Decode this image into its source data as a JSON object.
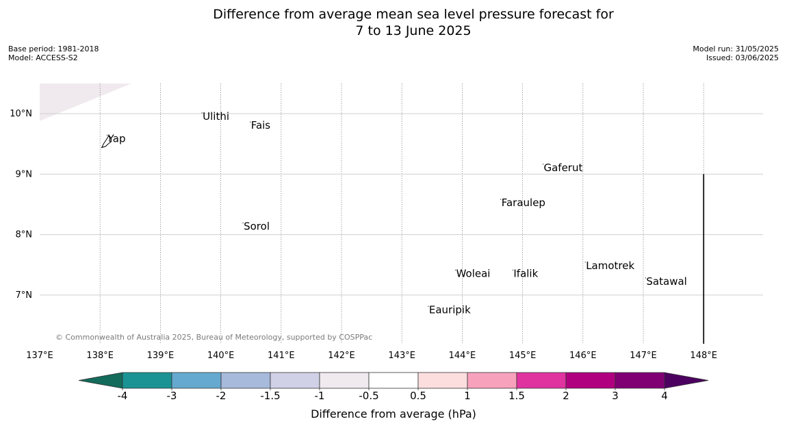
{
  "title": {
    "line1": "Difference from average mean sea level pressure forecast for",
    "line2": "7 to 13 June 2025"
  },
  "meta": {
    "base_period": "Base period: 1981-2018",
    "model": "Model: ACCESS-S2",
    "model_run": "Model run: 31/05/2025",
    "issued": "Issued: 03/06/2025"
  },
  "copyright": "© Commonwealth of Australia 2025, Bureau of Meteorology, supported by COSPPac",
  "map": {
    "lon_range": [
      137,
      149
    ],
    "lat_range": [
      6.2,
      10.5
    ],
    "lon_ticks": [
      {
        "value": 137,
        "label": "137°E"
      },
      {
        "value": 138,
        "label": "138°E"
      },
      {
        "value": 139,
        "label": "139°E"
      },
      {
        "value": 140,
        "label": "140°E"
      },
      {
        "value": 141,
        "label": "141°E"
      },
      {
        "value": 142,
        "label": "142°E"
      },
      {
        "value": 143,
        "label": "143°E"
      },
      {
        "value": 144,
        "label": "144°E"
      },
      {
        "value": 145,
        "label": "145°E"
      },
      {
        "value": 146,
        "label": "146°E"
      },
      {
        "value": 147,
        "label": "147°E"
      },
      {
        "value": 148,
        "label": "148°E"
      }
    ],
    "lat_ticks": [
      {
        "value": 10,
        "label": "10°N"
      },
      {
        "value": 9,
        "label": "9°N"
      },
      {
        "value": 8,
        "label": "8°N"
      },
      {
        "value": 7,
        "label": "7°N"
      }
    ],
    "places": [
      {
        "name": "Ulithi",
        "lon": 139.7,
        "lat": 9.9
      },
      {
        "name": "Fais",
        "lon": 140.5,
        "lat": 9.75
      },
      {
        "name": "Yap",
        "lon": 138.13,
        "lat": 9.53
      },
      {
        "name": "Gaferut",
        "lon": 145.35,
        "lat": 9.05
      },
      {
        "name": "Faraulep",
        "lon": 144.65,
        "lat": 8.47
      },
      {
        "name": "Sorol",
        "lon": 140.38,
        "lat": 8.08
      },
      {
        "name": "Woleai",
        "lon": 143.9,
        "lat": 7.3
      },
      {
        "name": "Ifalik",
        "lon": 144.85,
        "lat": 7.3
      },
      {
        "name": "Lamotrek",
        "lon": 146.05,
        "lat": 7.43
      },
      {
        "name": "Satawal",
        "lon": 147.05,
        "lat": 7.17
      },
      {
        "name": "Eauripik",
        "lon": 143.45,
        "lat": 6.7
      }
    ],
    "shaded_region": {
      "category": "-1 to -0.5",
      "color": "#f0eaee"
    }
  },
  "colorbar": {
    "label": "Difference from average (hPa)",
    "ticks": [
      "-4",
      "-3",
      "-2",
      "-1.5",
      "-1",
      "-0.5",
      "0.5",
      "1",
      "1.5",
      "2",
      "3",
      "4"
    ],
    "colors": [
      "#136b5b",
      "#1b9394",
      "#66a9d0",
      "#a7badc",
      "#d0d0e6",
      "#f0eaee",
      "#ffffff",
      "#fddede",
      "#f8a1bd",
      "#e033a0",
      "#b0007f",
      "#800074",
      "#4c0060"
    ]
  }
}
